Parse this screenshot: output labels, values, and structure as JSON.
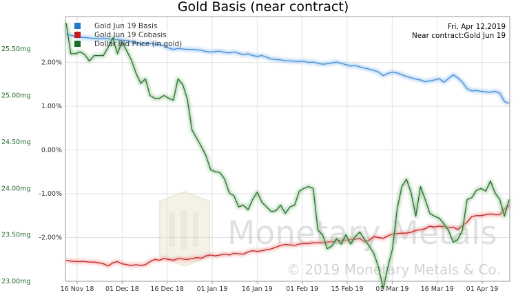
{
  "chart_data": {
    "type": "line",
    "title": "Gold Basis (near contract)",
    "date_label": "Fri, Apr 12,2019",
    "contract_label": "Near contract:Gold Jun 19",
    "watermark": {
      "brand": "Monetary Metals",
      "copyright": "© 2019 Monetary Metals & Co."
    },
    "left_axis": {
      "ticks": [
        "25.50mg",
        "25.00mg",
        "24.50mg",
        "24.00mg",
        "23.50mg",
        "23.00mg"
      ],
      "ylim_mg": [
        23.0,
        25.85
      ]
    },
    "mid_axis": {
      "ticks": [
        "2.00%",
        "1.00%",
        "0.00%",
        "-1.00%",
        "-2.00%"
      ],
      "ylim_pct": [
        -3.0,
        3.05
      ]
    },
    "x_ticks": [
      "16 Nov 18",
      "01 Dec 18",
      "16 Dec 18",
      "01 Jan 19",
      "16 Jan 19",
      "01 Feb 19",
      "15 Feb 19",
      "01 Mar 19",
      "16 Mar 19",
      "01 Apr 19"
    ],
    "colors": {
      "basis": "#4a90d9",
      "cobasis": "#c0282a",
      "dollar": "#2e6b34",
      "grid": "#e2e2e2"
    },
    "legend": [
      {
        "name": "Gold Jun 19 Basis",
        "color": "#1f77c8"
      },
      {
        "name": "Gold Jun 19 Cobasis",
        "color": "#c41a1a"
      },
      {
        "name": "Dollar Bid Price (in gold)",
        "color": "#1a6b2a"
      }
    ],
    "series": [
      {
        "name": "Gold Jun 19 Basis",
        "axis": "pct",
        "values": [
          2.65,
          2.62,
          2.6,
          2.58,
          2.57,
          2.56,
          2.55,
          2.54,
          2.55,
          2.54,
          2.53,
          2.52,
          2.51,
          2.5,
          2.48,
          2.45,
          2.42,
          2.43,
          2.44,
          2.42,
          2.41,
          2.38,
          2.33,
          2.3,
          2.32,
          2.31,
          2.3,
          2.3,
          2.29,
          2.28,
          2.25,
          2.24,
          2.25,
          2.26,
          2.23,
          2.22,
          2.24,
          2.21,
          2.18,
          2.2,
          2.16,
          2.14,
          2.16,
          2.12,
          2.08,
          2.07,
          2.06,
          2.04,
          2.04,
          2.03,
          2.02,
          2.03,
          2.0,
          2.01,
          1.98,
          1.96,
          1.97,
          1.99,
          2.01,
          1.98,
          1.95,
          1.92,
          1.93,
          1.9,
          1.87,
          1.85,
          1.82,
          1.78,
          1.7,
          1.75,
          1.78,
          1.76,
          1.72,
          1.68,
          1.65,
          1.62,
          1.6,
          1.56,
          1.58,
          1.6,
          1.63,
          1.55,
          1.63,
          1.72,
          1.65,
          1.55,
          1.4,
          1.35,
          1.36,
          1.34,
          1.33,
          1.32,
          1.34,
          1.3,
          1.11,
          1.06
        ]
      },
      {
        "name": "Gold Jun 19 Cobasis",
        "axis": "pct",
        "values": [
          -2.52,
          -2.54,
          -2.55,
          -2.55,
          -2.55,
          -2.56,
          -2.56,
          -2.58,
          -2.6,
          -2.65,
          -2.58,
          -2.55,
          -2.6,
          -2.62,
          -2.64,
          -2.62,
          -2.64,
          -2.62,
          -2.55,
          -2.5,
          -2.52,
          -2.48,
          -2.5,
          -2.52,
          -2.48,
          -2.49,
          -2.5,
          -2.48,
          -2.46,
          -2.47,
          -2.42,
          -2.4,
          -2.42,
          -2.4,
          -2.38,
          -2.4,
          -2.36,
          -2.37,
          -2.38,
          -2.33,
          -2.3,
          -2.32,
          -2.3,
          -2.28,
          -2.26,
          -2.22,
          -2.18,
          -2.16,
          -2.17,
          -2.18,
          -2.15,
          -2.14,
          -2.14,
          -2.12,
          -2.12,
          -2.12,
          -2.1,
          -2.1,
          -2.08,
          -2.06,
          -2.06,
          -2.05,
          -2.04,
          -2.02,
          -2.1,
          -2.06,
          -1.98,
          -2.0,
          -2.02,
          -1.96,
          -1.92,
          -1.91,
          -1.9,
          -1.9,
          -1.88,
          -1.84,
          -1.82,
          -1.8,
          -1.74,
          -1.76,
          -1.74,
          -1.75,
          -1.78,
          -1.76,
          -1.82,
          -1.72,
          -1.65,
          -1.52,
          -1.5,
          -1.5,
          -1.48,
          -1.46,
          -1.48,
          -1.48,
          -1.35,
          -1.28
        ]
      },
      {
        "name": "Dollar Bid Price (in gold)",
        "axis": "mg",
        "values": [
          25.78,
          25.45,
          25.45,
          25.47,
          25.44,
          25.37,
          25.43,
          25.43,
          25.43,
          25.52,
          25.62,
          25.45,
          25.58,
          25.48,
          25.38,
          25.24,
          25.13,
          25.18,
          25.0,
          24.97,
          24.97,
          25.0,
          24.97,
          24.95,
          25.18,
          25.12,
          24.96,
          24.63,
          24.54,
          24.45,
          24.35,
          24.2,
          24.18,
          24.17,
          24.1,
          23.95,
          23.92,
          23.8,
          23.82,
          23.77,
          23.88,
          23.96,
          23.85,
          23.8,
          23.75,
          23.76,
          23.82,
          23.73,
          23.8,
          23.82,
          23.97,
          24.0,
          24.02,
          24.0,
          23.55,
          23.5,
          23.35,
          23.38,
          23.46,
          23.4,
          23.5,
          23.4,
          23.48,
          23.53,
          23.45,
          23.38,
          23.3,
          23.15,
          22.92,
          23.15,
          23.35,
          23.78,
          24.02,
          24.1,
          23.95,
          23.7,
          24.02,
          23.88,
          23.73,
          23.7,
          23.68,
          23.62,
          23.55,
          23.42,
          23.45,
          23.55,
          23.88,
          23.9,
          23.98,
          24.0,
          23.97,
          24.08,
          23.95,
          23.88,
          23.7,
          23.88
        ]
      }
    ]
  }
}
